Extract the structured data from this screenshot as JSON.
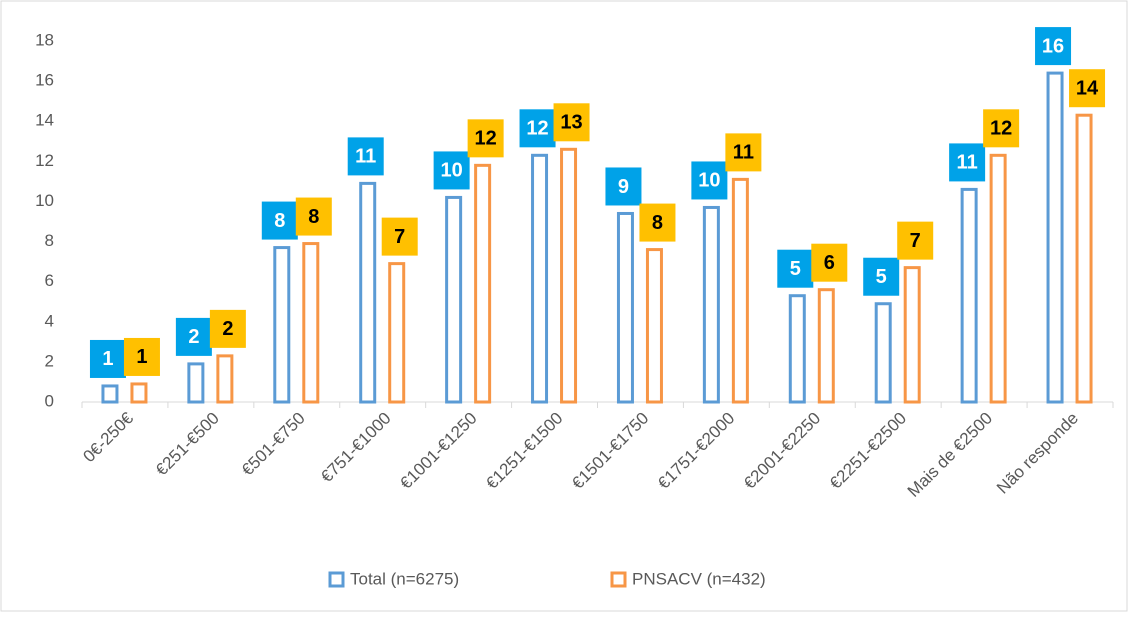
{
  "chart_data": {
    "type": "bar",
    "categories": [
      "0€-250€",
      "€251-€500",
      "€501-€750",
      "€751-€1000",
      "€1001-€1250",
      "€1251-€1500",
      "€1501-€1750",
      "€1751-€2000",
      "€2001-€2250",
      "€2251-€2500",
      "Mais de €2500",
      "Não responde"
    ],
    "series": [
      {
        "name": "Total (n=6275)",
        "color": "#5b9bd5",
        "label_color": "#00a2e8",
        "values": [
          0.8,
          1.9,
          7.7,
          10.9,
          10.2,
          12.3,
          9.4,
          9.7,
          5.3,
          4.9,
          10.6,
          16.4
        ],
        "value_labels": [
          "1",
          "2",
          "8",
          "11",
          "10",
          "12",
          "9",
          "10",
          "5",
          "5",
          "11",
          "16"
        ]
      },
      {
        "name": "PNSACV (n=432)",
        "color": "#f79646",
        "label_color": "#ffc000",
        "values": [
          0.9,
          2.3,
          7.9,
          6.9,
          11.8,
          12.6,
          7.6,
          11.1,
          5.6,
          6.7,
          12.3,
          14.3
        ],
        "value_labels": [
          "1",
          "2",
          "8",
          "7",
          "12",
          "13",
          "8",
          "11",
          "6",
          "7",
          "12",
          "14"
        ]
      }
    ],
    "ylim": [
      0,
      18
    ],
    "yticks": [
      0,
      2,
      4,
      6,
      8,
      10,
      12,
      14,
      16,
      18
    ],
    "grid": false,
    "legend": "bottom"
  }
}
